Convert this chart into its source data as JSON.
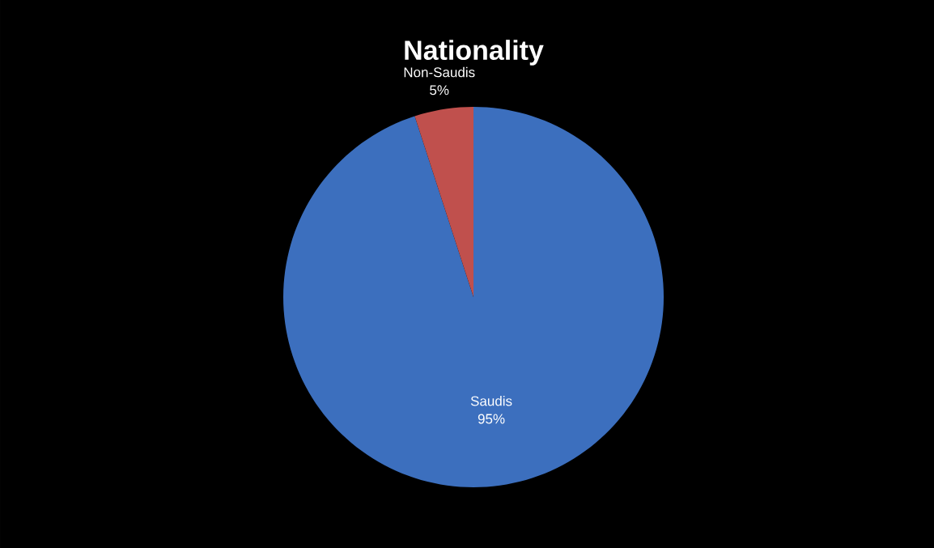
{
  "chart_data": {
    "type": "pie",
    "title": "Nationality",
    "categories": [
      "Saudis",
      "Non-Saudis"
    ],
    "values": [
      95,
      5
    ],
    "colors": [
      "#3c6fbe",
      "#c0504d"
    ],
    "value_labels": [
      "95%",
      "5%"
    ]
  }
}
